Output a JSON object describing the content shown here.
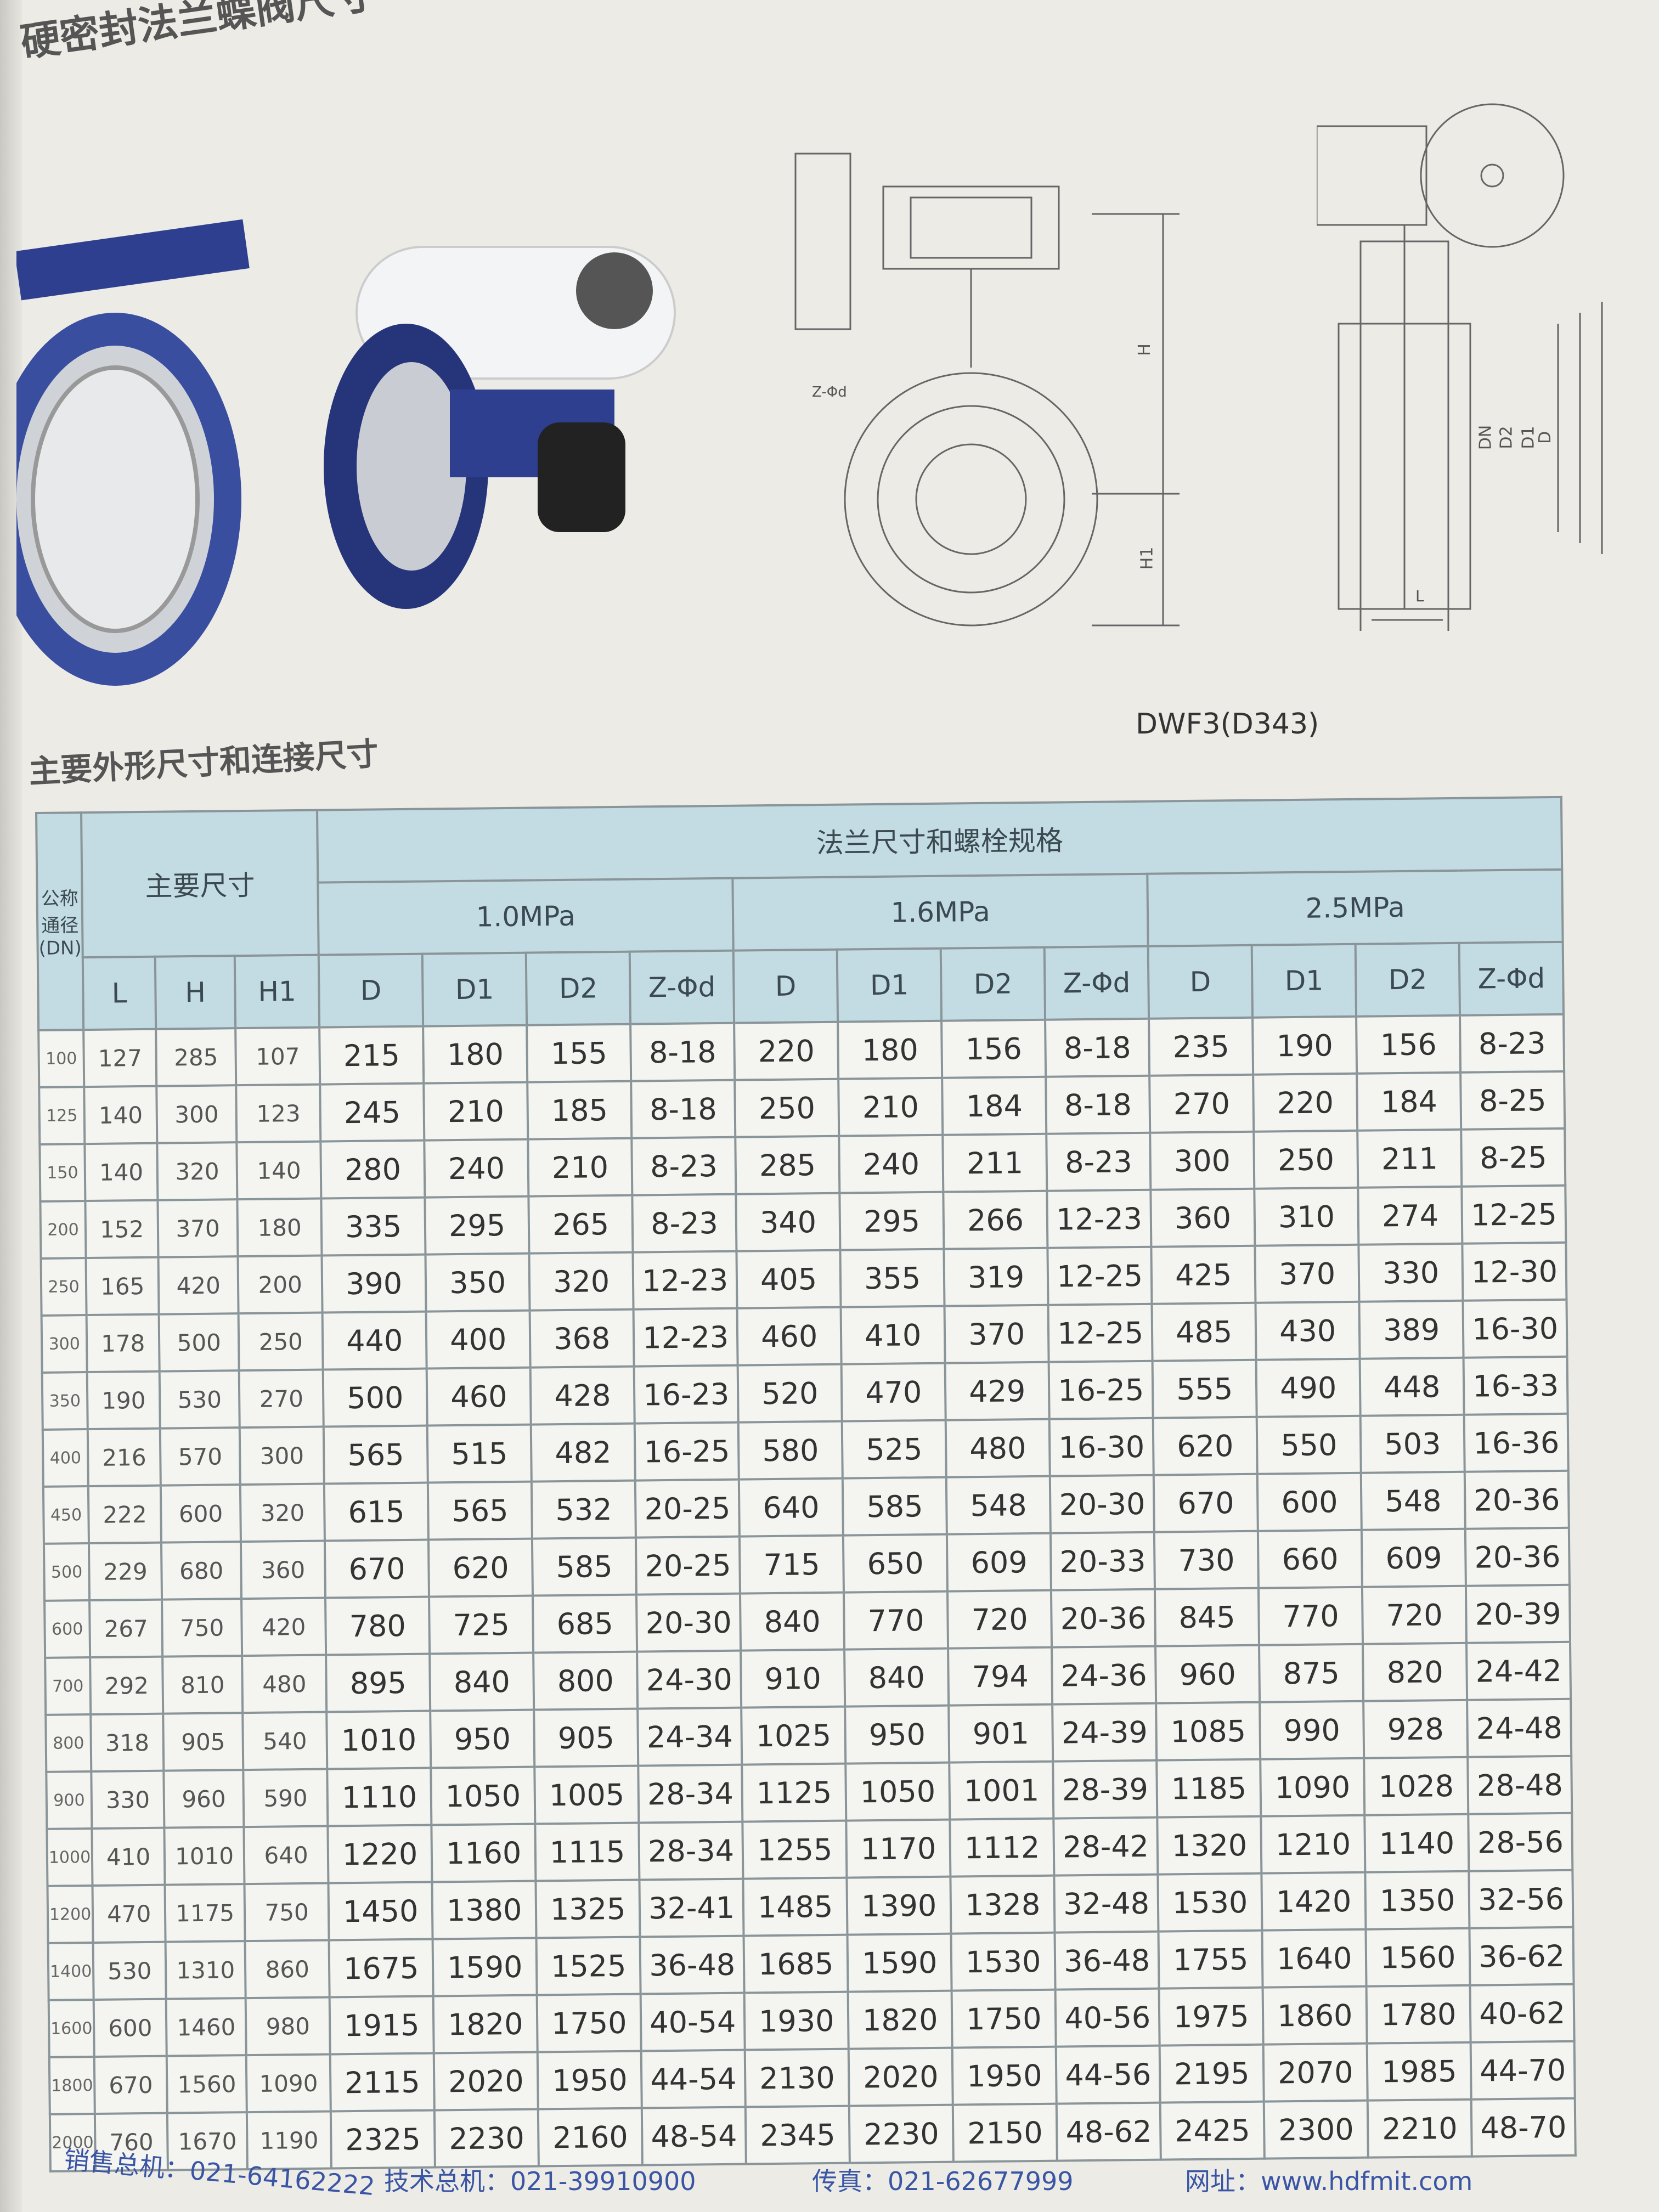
{
  "page_title": "硬密封法兰蝶阀尺寸",
  "model": "DWF3(D343)",
  "section_title": "主要外形尺寸和连接尺寸",
  "drawing_labels": {
    "bolt": "Z-Φd",
    "H": "H",
    "H1": "H1",
    "L": "L",
    "DN": "DN",
    "D2": "D2",
    "D1": "D1",
    "D": "D"
  },
  "table": {
    "dn_header": "公称通径(DN)",
    "main_header": "主要尺寸",
    "flange_header": "法兰尺寸和螺栓规格",
    "pressures": [
      "1.0MPa",
      "1.6MPa",
      "2.5MPa"
    ],
    "main_columns": [
      "L",
      "H",
      "H1"
    ],
    "flange_columns": [
      "D",
      "D1",
      "D2",
      "Z-Φd"
    ],
    "rows": [
      [
        "100",
        "127",
        "285",
        "107",
        "215",
        "180",
        "155",
        "8-18",
        "220",
        "180",
        "156",
        "8-18",
        "235",
        "190",
        "156",
        "8-23"
      ],
      [
        "125",
        "140",
        "300",
        "123",
        "245",
        "210",
        "185",
        "8-18",
        "250",
        "210",
        "184",
        "8-18",
        "270",
        "220",
        "184",
        "8-25"
      ],
      [
        "150",
        "140",
        "320",
        "140",
        "280",
        "240",
        "210",
        "8-23",
        "285",
        "240",
        "211",
        "8-23",
        "300",
        "250",
        "211",
        "8-25"
      ],
      [
        "200",
        "152",
        "370",
        "180",
        "335",
        "295",
        "265",
        "8-23",
        "340",
        "295",
        "266",
        "12-23",
        "360",
        "310",
        "274",
        "12-25"
      ],
      [
        "250",
        "165",
        "420",
        "200",
        "390",
        "350",
        "320",
        "12-23",
        "405",
        "355",
        "319",
        "12-25",
        "425",
        "370",
        "330",
        "12-30"
      ],
      [
        "300",
        "178",
        "500",
        "250",
        "440",
        "400",
        "368",
        "12-23",
        "460",
        "410",
        "370",
        "12-25",
        "485",
        "430",
        "389",
        "16-30"
      ],
      [
        "350",
        "190",
        "530",
        "270",
        "500",
        "460",
        "428",
        "16-23",
        "520",
        "470",
        "429",
        "16-25",
        "555",
        "490",
        "448",
        "16-33"
      ],
      [
        "400",
        "216",
        "570",
        "300",
        "565",
        "515",
        "482",
        "16-25",
        "580",
        "525",
        "480",
        "16-30",
        "620",
        "550",
        "503",
        "16-36"
      ],
      [
        "450",
        "222",
        "600",
        "320",
        "615",
        "565",
        "532",
        "20-25",
        "640",
        "585",
        "548",
        "20-30",
        "670",
        "600",
        "548",
        "20-36"
      ],
      [
        "500",
        "229",
        "680",
        "360",
        "670",
        "620",
        "585",
        "20-25",
        "715",
        "650",
        "609",
        "20-33",
        "730",
        "660",
        "609",
        "20-36"
      ],
      [
        "600",
        "267",
        "750",
        "420",
        "780",
        "725",
        "685",
        "20-30",
        "840",
        "770",
        "720",
        "20-36",
        "845",
        "770",
        "720",
        "20-39"
      ],
      [
        "700",
        "292",
        "810",
        "480",
        "895",
        "840",
        "800",
        "24-30",
        "910",
        "840",
        "794",
        "24-36",
        "960",
        "875",
        "820",
        "24-42"
      ],
      [
        "800",
        "318",
        "905",
        "540",
        "1010",
        "950",
        "905",
        "24-34",
        "1025",
        "950",
        "901",
        "24-39",
        "1085",
        "990",
        "928",
        "24-48"
      ],
      [
        "900",
        "330",
        "960",
        "590",
        "1110",
        "1050",
        "1005",
        "28-34",
        "1125",
        "1050",
        "1001",
        "28-39",
        "1185",
        "1090",
        "1028",
        "28-48"
      ],
      [
        "1000",
        "410",
        "1010",
        "640",
        "1220",
        "1160",
        "1115",
        "28-34",
        "1255",
        "1170",
        "1112",
        "28-42",
        "1320",
        "1210",
        "1140",
        "28-56"
      ],
      [
        "1200",
        "470",
        "1175",
        "750",
        "1450",
        "1380",
        "1325",
        "32-41",
        "1485",
        "1390",
        "1328",
        "32-48",
        "1530",
        "1420",
        "1350",
        "32-56"
      ],
      [
        "1400",
        "530",
        "1310",
        "860",
        "1675",
        "1590",
        "1525",
        "36-48",
        "1685",
        "1590",
        "1530",
        "36-48",
        "1755",
        "1640",
        "1560",
        "36-62"
      ],
      [
        "1600",
        "600",
        "1460",
        "980",
        "1915",
        "1820",
        "1750",
        "40-54",
        "1930",
        "1820",
        "1750",
        "40-56",
        "1975",
        "1860",
        "1780",
        "40-62"
      ],
      [
        "1800",
        "670",
        "1560",
        "1090",
        "2115",
        "2020",
        "1950",
        "44-54",
        "2130",
        "2020",
        "1950",
        "44-56",
        "2195",
        "2070",
        "1985",
        "44-70"
      ],
      [
        "2000",
        "760",
        "1670",
        "1190",
        "2325",
        "2230",
        "2160",
        "48-54",
        "2345",
        "2230",
        "2150",
        "48-62",
        "2425",
        "2300",
        "2210",
        "48-70"
      ]
    ]
  },
  "footer": {
    "sales": "销售总机：021-64162222",
    "tech": "技术总机：021-39910900",
    "fax": "传真：021-62677999",
    "web": "网址：www.hdfmit.com"
  },
  "colors": {
    "header_bg": "#c3dbe3",
    "footer_text": "#3a55a4",
    "valve_blue": "#2e3f8f"
  }
}
